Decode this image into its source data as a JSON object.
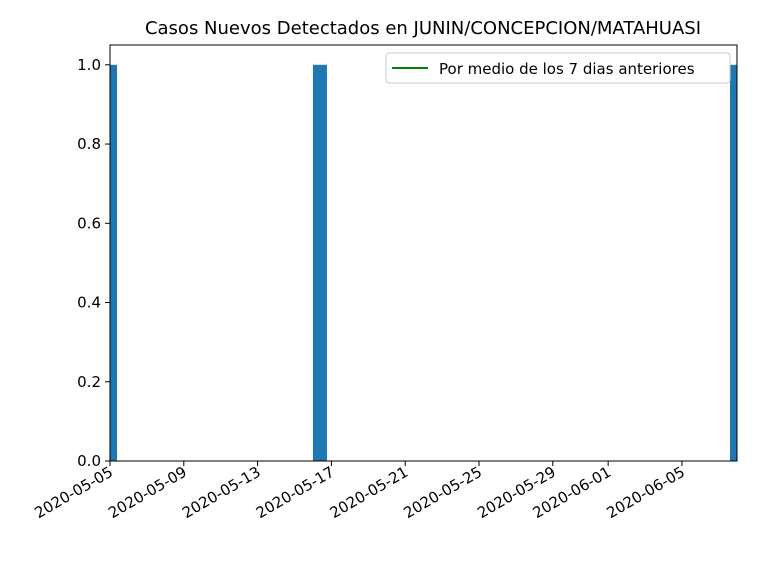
{
  "chart_data": {
    "type": "bar",
    "title": "Casos Nuevos Detectados en JUNIN/CONCEPCION/MATAHUASI",
    "xlabel": "",
    "ylabel": "",
    "x_tick_labels": [
      "2020-05-05",
      "2020-05-09",
      "2020-05-13",
      "2020-05-17",
      "2020-05-21",
      "2020-05-25",
      "2020-05-29",
      "2020-06-01",
      "2020-06-05"
    ],
    "y_tick_labels": [
      "0.0",
      "0.2",
      "0.4",
      "0.6",
      "0.8",
      "1.0"
    ],
    "ylim": [
      0,
      1.05
    ],
    "series": [
      {
        "values": [
          {
            "date": "2020-05-05",
            "value": 1
          },
          {
            "date": "2020-05-16",
            "value": 1
          },
          {
            "date": "2020-06-08",
            "value": 1
          }
        ],
        "color": "#1f77b4"
      },
      {
        "name": "Por medio de los 7 dias anteriores",
        "type": "line",
        "values": [],
        "color": "#008000"
      }
    ],
    "legend_position": "top-right",
    "grid": false
  }
}
